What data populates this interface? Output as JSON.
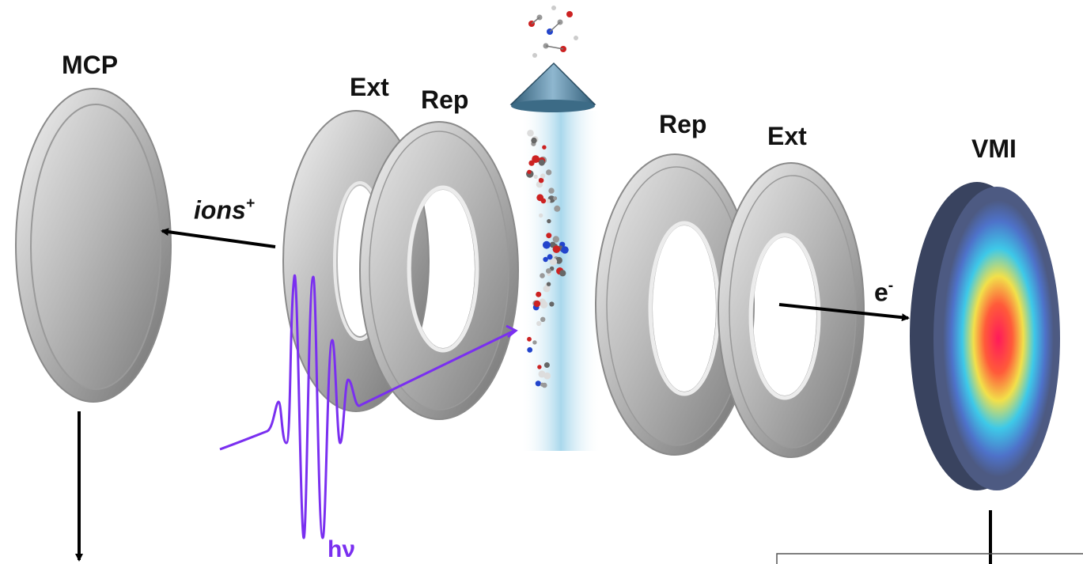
{
  "labels": {
    "mcp": "MCP",
    "ext_left": "Ext",
    "rep_left": "Rep",
    "rep_right": "Rep",
    "ext_right": "Ext",
    "vmi": "VMI",
    "ions_base": "ions",
    "ions_sup": "+",
    "electron_base": "e",
    "electron_sup": "-",
    "photon": "hν"
  },
  "colors": {
    "plate": "#b9b9b9",
    "plate_rim": "#8f8f8f",
    "arrow": "#000000",
    "photon": "#7a2ff0",
    "beam": "#9fd3ea",
    "cone": "#5f8faa",
    "detector_dark": "#3b4566",
    "detector_face": "#4d5a82"
  },
  "icons": {
    "molecule": "molecule-ball-stick-icon",
    "nozzle": "conical-nozzle-icon"
  }
}
